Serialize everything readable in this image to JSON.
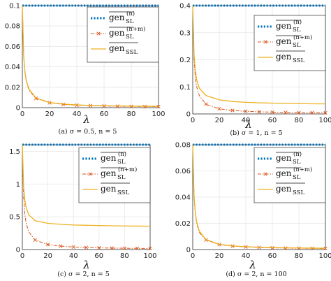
{
  "chart_data": [
    {
      "type": "line",
      "caption": "(a) σ = 0.5, n = 5",
      "xlabel": "λ",
      "xlim": [
        0,
        100
      ],
      "ylim": [
        0,
        0.1
      ],
      "xticks": [
        "0",
        "20",
        "40",
        "60",
        "80",
        "100"
      ],
      "yticks": [
        "0",
        "0.02",
        "0.04",
        "0.06",
        "0.08",
        "0.1"
      ],
      "legend_position": "top-right",
      "series": [
        {
          "label": "gen_SL^(n)",
          "style": "dotted",
          "color": "#0072BD",
          "x": [
            0,
            100
          ],
          "y": [
            0.1,
            0.1
          ]
        },
        {
          "label": "gen_SL^(n+m)",
          "style": "dashdot-x",
          "color": "#D95319",
          "x": [
            0,
            1,
            2,
            3,
            5,
            10,
            20,
            30,
            40,
            50,
            60,
            70,
            80,
            90,
            100
          ],
          "y": [
            0.1,
            0.05,
            0.033,
            0.025,
            0.017,
            0.009,
            0.0048,
            0.0032,
            0.0024,
            0.002,
            0.0016,
            0.0014,
            0.0012,
            0.0011,
            0.001
          ]
        },
        {
          "label": "gen_SSL",
          "style": "solid",
          "color": "#EDB120",
          "x": [
            0,
            1,
            2,
            3,
            5,
            10,
            20,
            30,
            40,
            50,
            60,
            70,
            80,
            90,
            100
          ],
          "y": [
            0.1,
            0.05,
            0.034,
            0.026,
            0.018,
            0.0095,
            0.005,
            0.0035,
            0.0027,
            0.0022,
            0.0019,
            0.0017,
            0.0015,
            0.0014,
            0.0013
          ]
        }
      ]
    },
    {
      "type": "line",
      "caption": "(b) σ = 1, n = 5",
      "xlabel": "λ",
      "xlim": [
        0,
        100
      ],
      "ylim": [
        0,
        0.4
      ],
      "xticks": [
        "0",
        "20",
        "40",
        "60",
        "80",
        "100"
      ],
      "yticks": [
        "0",
        "0.1",
        "0.2",
        "0.3",
        "0.4"
      ],
      "legend_position": "top-right",
      "series": [
        {
          "label": "gen_SL^(n)",
          "style": "dotted",
          "color": "#0072BD",
          "x": [
            0,
            100
          ],
          "y": [
            0.4,
            0.4
          ]
        },
        {
          "label": "gen_SL^(n+m)",
          "style": "dashdot-x",
          "color": "#D95319",
          "x": [
            0,
            1,
            2,
            3,
            5,
            10,
            20,
            30,
            40,
            50,
            60,
            70,
            80,
            90,
            100
          ],
          "y": [
            0.4,
            0.2,
            0.133,
            0.1,
            0.067,
            0.036,
            0.019,
            0.013,
            0.0098,
            0.0078,
            0.0066,
            0.0056,
            0.0049,
            0.0044,
            0.004
          ]
        },
        {
          "label": "gen_SSL",
          "style": "solid",
          "color": "#EDB120",
          "x": [
            0,
            1,
            2,
            3,
            5,
            10,
            20,
            30,
            40,
            50,
            60,
            70,
            80,
            90,
            100
          ],
          "y": [
            0.4,
            0.22,
            0.16,
            0.125,
            0.095,
            0.068,
            0.052,
            0.046,
            0.043,
            0.041,
            0.04,
            0.039,
            0.038,
            0.0375,
            0.037
          ]
        }
      ]
    },
    {
      "type": "line",
      "caption": "(c) σ = 2, n = 5",
      "xlabel": "λ",
      "xlim": [
        0,
        100
      ],
      "ylim": [
        0,
        1.6
      ],
      "xticks": [
        "0",
        "20",
        "40",
        "60",
        "80",
        "100"
      ],
      "yticks": [
        "0",
        "0.5",
        "1",
        "1.5"
      ],
      "legend_position": "top-right",
      "series": [
        {
          "label": "gen_SL^(n)",
          "style": "dotted",
          "color": "#0072BD",
          "x": [
            0,
            100
          ],
          "y": [
            1.6,
            1.6
          ]
        },
        {
          "label": "gen_SL^(n+m)",
          "style": "dashdot-x",
          "color": "#D95319",
          "x": [
            0,
            1,
            2,
            3,
            5,
            10,
            20,
            30,
            40,
            50,
            60,
            70,
            80,
            90,
            100
          ],
          "y": [
            1.6,
            0.8,
            0.53,
            0.4,
            0.27,
            0.145,
            0.076,
            0.052,
            0.039,
            0.031,
            0.026,
            0.022,
            0.02,
            0.018,
            0.016
          ]
        },
        {
          "label": "gen_SSL",
          "style": "solid",
          "color": "#EDB120",
          "x": [
            0,
            1,
            2,
            3,
            5,
            10,
            20,
            30,
            40,
            50,
            60,
            70,
            80,
            90,
            100
          ],
          "y": [
            1.6,
            0.95,
            0.75,
            0.64,
            0.53,
            0.44,
            0.4,
            0.385,
            0.375,
            0.37,
            0.366,
            0.363,
            0.36,
            0.358,
            0.356
          ]
        }
      ]
    },
    {
      "type": "line",
      "caption": "(d) σ = 2, n = 100",
      "xlabel": "λ",
      "xlim": [
        0,
        100
      ],
      "ylim": [
        0,
        0.08
      ],
      "xticks": [
        "0",
        "20",
        "40",
        "60",
        "80",
        "100"
      ],
      "yticks": [
        "0",
        "0.02",
        "0.04",
        "0.06",
        "0.08"
      ],
      "legend_position": "top-right",
      "series": [
        {
          "label": "gen_SL^(n)",
          "style": "dotted",
          "color": "#0072BD",
          "x": [
            0,
            100
          ],
          "y": [
            0.08,
            0.08
          ]
        },
        {
          "label": "gen_SL^(n+m)",
          "style": "dashdot-x",
          "color": "#D95319",
          "x": [
            0,
            1,
            2,
            3,
            5,
            10,
            20,
            30,
            40,
            50,
            60,
            70,
            80,
            90,
            100
          ],
          "y": [
            0.08,
            0.04,
            0.027,
            0.02,
            0.013,
            0.0073,
            0.0038,
            0.0026,
            0.002,
            0.0016,
            0.0013,
            0.0011,
            0.001,
            0.0009,
            0.0008
          ]
        },
        {
          "label": "gen_SSL",
          "style": "solid",
          "color": "#EDB120",
          "x": [
            0,
            1,
            2,
            3,
            5,
            10,
            20,
            30,
            40,
            50,
            60,
            70,
            80,
            90,
            100
          ],
          "y": [
            0.08,
            0.041,
            0.028,
            0.021,
            0.014,
            0.0076,
            0.004,
            0.0028,
            0.0022,
            0.0018,
            0.0015,
            0.0013,
            0.0012,
            0.0011,
            0.001
          ]
        }
      ]
    }
  ],
  "legend": {
    "entries": [
      {
        "base": "gen",
        "sub": "SL",
        "sup": "(n)"
      },
      {
        "base": "gen",
        "sub": "SL",
        "sup": "(n+m)"
      },
      {
        "base": "gen",
        "sub": "SSL",
        "sup": ""
      }
    ]
  }
}
